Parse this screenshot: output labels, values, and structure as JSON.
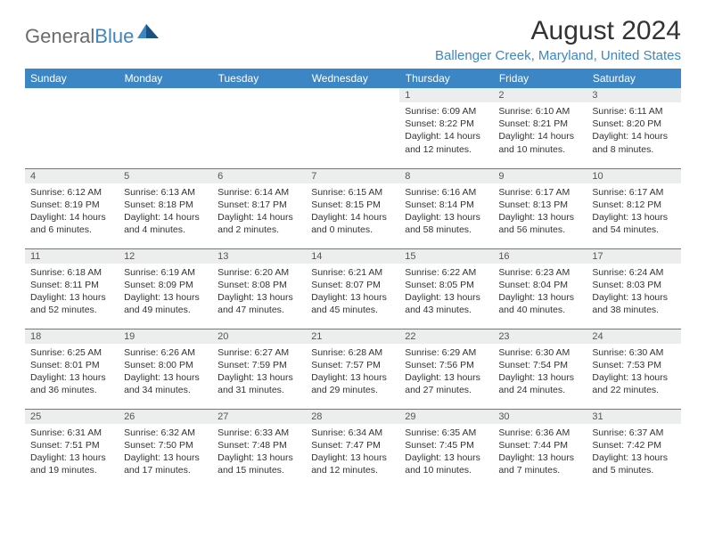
{
  "logo": {
    "word1": "General",
    "word2": "Blue"
  },
  "title": "August 2024",
  "location": "Ballenger Creek, Maryland, United States",
  "colors": {
    "accent": "#3d86c6",
    "header_text": "#ffffff",
    "grid_line": "#3d86c6",
    "daynum_bg": "#eceded",
    "body_text": "#333333",
    "logo_gray": "#6b6b6b"
  },
  "day_headers": [
    "Sunday",
    "Monday",
    "Tuesday",
    "Wednesday",
    "Thursday",
    "Friday",
    "Saturday"
  ],
  "weeks": [
    [
      {
        "blank": true
      },
      {
        "blank": true
      },
      {
        "blank": true
      },
      {
        "blank": true
      },
      {
        "n": "1",
        "sr": "6:09 AM",
        "ss": "8:22 PM",
        "dl": "14 hours and 12 minutes."
      },
      {
        "n": "2",
        "sr": "6:10 AM",
        "ss": "8:21 PM",
        "dl": "14 hours and 10 minutes."
      },
      {
        "n": "3",
        "sr": "6:11 AM",
        "ss": "8:20 PM",
        "dl": "14 hours and 8 minutes."
      }
    ],
    [
      {
        "n": "4",
        "sr": "6:12 AM",
        "ss": "8:19 PM",
        "dl": "14 hours and 6 minutes."
      },
      {
        "n": "5",
        "sr": "6:13 AM",
        "ss": "8:18 PM",
        "dl": "14 hours and 4 minutes."
      },
      {
        "n": "6",
        "sr": "6:14 AM",
        "ss": "8:17 PM",
        "dl": "14 hours and 2 minutes."
      },
      {
        "n": "7",
        "sr": "6:15 AM",
        "ss": "8:15 PM",
        "dl": "14 hours and 0 minutes."
      },
      {
        "n": "8",
        "sr": "6:16 AM",
        "ss": "8:14 PM",
        "dl": "13 hours and 58 minutes."
      },
      {
        "n": "9",
        "sr": "6:17 AM",
        "ss": "8:13 PM",
        "dl": "13 hours and 56 minutes."
      },
      {
        "n": "10",
        "sr": "6:17 AM",
        "ss": "8:12 PM",
        "dl": "13 hours and 54 minutes."
      }
    ],
    [
      {
        "n": "11",
        "sr": "6:18 AM",
        "ss": "8:11 PM",
        "dl": "13 hours and 52 minutes."
      },
      {
        "n": "12",
        "sr": "6:19 AM",
        "ss": "8:09 PM",
        "dl": "13 hours and 49 minutes."
      },
      {
        "n": "13",
        "sr": "6:20 AM",
        "ss": "8:08 PM",
        "dl": "13 hours and 47 minutes."
      },
      {
        "n": "14",
        "sr": "6:21 AM",
        "ss": "8:07 PM",
        "dl": "13 hours and 45 minutes."
      },
      {
        "n": "15",
        "sr": "6:22 AM",
        "ss": "8:05 PM",
        "dl": "13 hours and 43 minutes."
      },
      {
        "n": "16",
        "sr": "6:23 AM",
        "ss": "8:04 PM",
        "dl": "13 hours and 40 minutes."
      },
      {
        "n": "17",
        "sr": "6:24 AM",
        "ss": "8:03 PM",
        "dl": "13 hours and 38 minutes."
      }
    ],
    [
      {
        "n": "18",
        "sr": "6:25 AM",
        "ss": "8:01 PM",
        "dl": "13 hours and 36 minutes."
      },
      {
        "n": "19",
        "sr": "6:26 AM",
        "ss": "8:00 PM",
        "dl": "13 hours and 34 minutes."
      },
      {
        "n": "20",
        "sr": "6:27 AM",
        "ss": "7:59 PM",
        "dl": "13 hours and 31 minutes."
      },
      {
        "n": "21",
        "sr": "6:28 AM",
        "ss": "7:57 PM",
        "dl": "13 hours and 29 minutes."
      },
      {
        "n": "22",
        "sr": "6:29 AM",
        "ss": "7:56 PM",
        "dl": "13 hours and 27 minutes."
      },
      {
        "n": "23",
        "sr": "6:30 AM",
        "ss": "7:54 PM",
        "dl": "13 hours and 24 minutes."
      },
      {
        "n": "24",
        "sr": "6:30 AM",
        "ss": "7:53 PM",
        "dl": "13 hours and 22 minutes."
      }
    ],
    [
      {
        "n": "25",
        "sr": "6:31 AM",
        "ss": "7:51 PM",
        "dl": "13 hours and 19 minutes."
      },
      {
        "n": "26",
        "sr": "6:32 AM",
        "ss": "7:50 PM",
        "dl": "13 hours and 17 minutes."
      },
      {
        "n": "27",
        "sr": "6:33 AM",
        "ss": "7:48 PM",
        "dl": "13 hours and 15 minutes."
      },
      {
        "n": "28",
        "sr": "6:34 AM",
        "ss": "7:47 PM",
        "dl": "13 hours and 12 minutes."
      },
      {
        "n": "29",
        "sr": "6:35 AM",
        "ss": "7:45 PM",
        "dl": "13 hours and 10 minutes."
      },
      {
        "n": "30",
        "sr": "6:36 AM",
        "ss": "7:44 PM",
        "dl": "13 hours and 7 minutes."
      },
      {
        "n": "31",
        "sr": "6:37 AM",
        "ss": "7:42 PM",
        "dl": "13 hours and 5 minutes."
      }
    ]
  ],
  "labels": {
    "sunrise": "Sunrise:",
    "sunset": "Sunset:",
    "daylight": "Daylight:"
  }
}
